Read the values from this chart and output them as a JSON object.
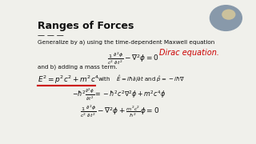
{
  "title": "Ranges of Forces",
  "bg_color": "#f0f0eb",
  "title_color": "#111111",
  "text_color": "#111111",
  "red_color": "#cc0000",
  "line1": "Generalize by a) using the time-dependent Maxwell equation",
  "handwriting": "Dirac equation.",
  "line2": "and b) adding a mass term.",
  "eq1": "$\\frac{1}{c^2}\\frac{\\partial^2\\phi}{\\partial t^2} - \\nabla^2\\phi = 0$",
  "eq2": "$E^2 = p^2c^2 + m^2c^4$",
  "eq2b": "with $\\quad \\hat{E} = i\\hbar\\partial/\\partial t$ and $\\hat{p} = -i\\hbar\\nabla$",
  "eq3": "$-\\hbar^2\\frac{\\partial^2\\phi}{\\partial t^2} = -\\hbar^2 c^2\\nabla^2\\phi + m^2c^4\\phi$",
  "eq4": "$\\frac{1}{c^2}\\frac{\\partial^2\\phi}{\\partial t^2} - \\nabla^2\\phi + \\frac{m^2c^2}{\\hbar^2}\\phi = 0$",
  "dashes": "— — —",
  "cam_color": "#1a1a2e"
}
